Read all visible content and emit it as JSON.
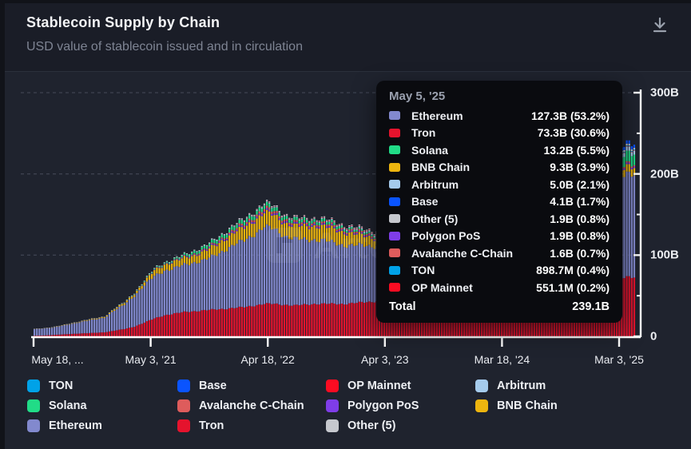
{
  "header": {
    "title": "Stablecoin Supply by Chain",
    "subtitle": "USD value of stablecoin issued and in circulation"
  },
  "watermark": "Artemis",
  "colors": {
    "Tron": "#e5132d",
    "Ethereum": "#8289ce",
    "BNB Chain": "#edb50f",
    "Polygon PoS": "#7f3de8",
    "Avalanche C-Chain": "#de5c5c",
    "Solana": "#21dc87",
    "Arbitrum": "#a5cbec",
    "OP Mainnet": "#fb0c22",
    "TON": "#00a2e8",
    "Other (5)": "#c6c8ce",
    "Base": "#0a54ff"
  },
  "chart_data": {
    "type": "bar",
    "subtype": "stacked-time-series",
    "title": "Stablecoin Supply by Chain",
    "unit": "billions USD",
    "ylim": [
      0,
      300
    ],
    "y_ticks": [
      "0",
      "100B",
      "200B",
      "300B"
    ],
    "y_tick_values": [
      0,
      100,
      200,
      300
    ],
    "y_minor_tick_values": [
      50,
      150,
      250
    ],
    "x_ticks": [
      "May 18, ...",
      "May 3, '21",
      "Apr 18, '22",
      "Apr 3, '23",
      "Mar 18, '24",
      "Mar 3, '25"
    ],
    "grid": "dashed-horizontal",
    "legend_position": "bottom",
    "x_monthly": [
      "2020-05",
      "2020-06",
      "2020-07",
      "2020-08",
      "2020-09",
      "2020-10",
      "2020-11",
      "2020-12",
      "2021-01",
      "2021-02",
      "2021-03",
      "2021-04",
      "2021-05",
      "2021-06",
      "2021-07",
      "2021-08",
      "2021-09",
      "2021-10",
      "2021-11",
      "2021-12",
      "2022-01",
      "2022-02",
      "2022-03",
      "2022-04",
      "2022-05",
      "2022-06",
      "2022-07",
      "2022-08",
      "2022-09",
      "2022-10",
      "2022-11",
      "2022-12",
      "2023-01",
      "2023-02",
      "2023-03",
      "2023-04",
      "2023-05",
      "2023-06",
      "2023-07",
      "2023-08",
      "2023-09",
      "2023-10",
      "2023-11",
      "2023-12",
      "2024-01",
      "2024-02",
      "2024-03",
      "2024-04",
      "2024-05",
      "2024-06",
      "2024-07",
      "2024-08",
      "2024-09",
      "2024-10",
      "2024-11",
      "2024-12",
      "2025-01",
      "2025-02",
      "2025-03",
      "2025-04",
      "2025-05"
    ],
    "stack_order_bottom_to_top": [
      "Tron",
      "Ethereum",
      "BNB Chain",
      "Polygon PoS",
      "Avalanche C-Chain",
      "Solana",
      "Arbitrum",
      "OP Mainnet",
      "TON",
      "Other (5)",
      "Base"
    ],
    "series": [
      {
        "name": "Tron",
        "values": [
          0.8,
          1.2,
          1.8,
          2.5,
          3.2,
          3.8,
          4.3,
          5,
          7,
          9,
          12,
          17,
          22,
          26,
          28,
          30,
          31,
          32,
          33,
          34,
          35,
          36,
          38,
          40,
          40,
          39,
          38,
          39,
          40,
          40,
          40,
          40,
          41,
          42,
          43,
          44,
          45,
          45,
          45,
          45,
          45,
          45,
          46,
          47,
          49,
          51,
          53,
          55,
          57,
          58,
          59,
          60,
          61,
          62,
          63,
          65,
          67,
          69,
          70,
          72,
          73.3
        ]
      },
      {
        "name": "Ethereum",
        "values": [
          8,
          8.6,
          9.4,
          11,
          13,
          15,
          16.5,
          18,
          25,
          30,
          38,
          46,
          52,
          55,
          56,
          58,
          60,
          62,
          66,
          72,
          78,
          82,
          88,
          95,
          92,
          85,
          82,
          80,
          79,
          78,
          75,
          72,
          71,
          70,
          68,
          66,
          65,
          64,
          63,
          62,
          61,
          60,
          62,
          64,
          68,
          71,
          74,
          77,
          79,
          81,
          83,
          85,
          88,
          92,
          98,
          105,
          112,
          118,
          122,
          125,
          127.3
        ]
      },
      {
        "name": "BNB Chain",
        "values": [
          0.2,
          0.2,
          0.3,
          0.4,
          0.5,
          0.6,
          0.8,
          1,
          1.5,
          2,
          2.5,
          4,
          7,
          7.5,
          8,
          8.5,
          9,
          10.5,
          12,
          13.5,
          15,
          16,
          17,
          17.5,
          17,
          16,
          16,
          16.5,
          17,
          17,
          17,
          16,
          14,
          12,
          10,
          9,
          8,
          7,
          6.5,
          6,
          5.5,
          5.2,
          5,
          5,
          5,
          5.2,
          5.5,
          5.5,
          5.5,
          5.5,
          5.5,
          5.5,
          5.5,
          5.7,
          6,
          6.5,
          7,
          7.5,
          8,
          8.8,
          9.3
        ]
      },
      {
        "name": "Polygon PoS",
        "values": [
          0,
          0,
          0,
          0,
          0,
          0,
          0,
          0,
          0.1,
          0.1,
          0.2,
          0.4,
          0.6,
          0.7,
          0.8,
          0.9,
          1,
          1.2,
          1.4,
          1.6,
          1.8,
          1.9,
          2,
          2.1,
          2,
          1.9,
          1.9,
          1.9,
          1.8,
          1.8,
          1.7,
          1.6,
          1.6,
          1.5,
          1.4,
          1.3,
          1.3,
          1.2,
          1.2,
          1.2,
          1.2,
          1.2,
          1.2,
          1.3,
          1.3,
          1.4,
          1.4,
          1.4,
          1.4,
          1.4,
          1.4,
          1.4,
          1.5,
          1.5,
          1.6,
          1.7,
          1.8,
          1.9,
          1.9,
          1.9,
          1.9
        ]
      },
      {
        "name": "Avalanche C-Chain",
        "values": [
          0,
          0,
          0,
          0,
          0,
          0,
          0,
          0,
          0,
          0.1,
          0.1,
          0.2,
          0.2,
          0.2,
          0.3,
          0.4,
          0.8,
          1,
          1.3,
          1.6,
          2,
          2.3,
          2.6,
          3,
          2.8,
          2.5,
          2.4,
          2.3,
          2.2,
          2.1,
          2,
          1.9,
          1.9,
          1.8,
          1.7,
          1.6,
          1.6,
          1.5,
          1.5,
          1.4,
          1.4,
          1.3,
          1.3,
          1.3,
          1.3,
          1.3,
          1.4,
          1.4,
          1.4,
          1.4,
          1.5,
          1.5,
          1.5,
          1.5,
          1.6,
          1.6,
          1.6,
          1.6,
          1.6,
          1.6,
          1.6
        ]
      },
      {
        "name": "Solana",
        "values": [
          0,
          0,
          0,
          0,
          0,
          0,
          0,
          0,
          0.2,
          0.3,
          0.5,
          0.8,
          1,
          1.2,
          1.5,
          2,
          3,
          3.3,
          3.7,
          4,
          4.2,
          4.4,
          4.5,
          4.6,
          4.4,
          3.8,
          3.6,
          3.5,
          3.4,
          3.3,
          3.1,
          2.5,
          2,
          1.9,
          1.8,
          1.8,
          1.7,
          1.7,
          1.6,
          1.6,
          1.5,
          1.5,
          1.6,
          1.8,
          2,
          2.5,
          3,
          3.2,
          3.5,
          3.7,
          4,
          4.2,
          4.5,
          4.8,
          5.5,
          7,
          10,
          11.5,
          12,
          12.5,
          13.2
        ]
      },
      {
        "name": "Arbitrum",
        "values": [
          0,
          0,
          0,
          0,
          0,
          0,
          0,
          0,
          0,
          0,
          0,
          0,
          0,
          0,
          0.1,
          0.1,
          0.3,
          0.4,
          0.5,
          0.6,
          0.7,
          0.8,
          0.9,
          1,
          1,
          1,
          1,
          1,
          1,
          1.1,
          1.1,
          1.2,
          1.5,
          1.7,
          1.9,
          2,
          2.1,
          2.2,
          2.3,
          2.4,
          2.5,
          2.6,
          2.7,
          2.8,
          3,
          3.2,
          3.3,
          3.4,
          3.5,
          3.5,
          3.6,
          3.7,
          3.8,
          4,
          4.5,
          5,
          5.5,
          5.3,
          5.1,
          5,
          5
        ]
      },
      {
        "name": "OP Mainnet",
        "values": [
          0,
          0,
          0,
          0,
          0,
          0,
          0,
          0,
          0,
          0,
          0,
          0,
          0,
          0,
          0,
          0,
          0,
          0,
          0,
          0,
          0.2,
          0.25,
          0.3,
          0.35,
          0.4,
          0.4,
          0.45,
          0.5,
          0.5,
          0.55,
          0.6,
          0.6,
          0.6,
          0.65,
          0.7,
          0.7,
          0.7,
          0.7,
          0.7,
          0.75,
          0.8,
          0.8,
          0.8,
          0.8,
          0.85,
          0.9,
          0.9,
          0.9,
          0.9,
          0.85,
          0.85,
          0.8,
          0.8,
          0.8,
          0.75,
          0.7,
          0.65,
          0.6,
          0.6,
          0.55,
          0.55
        ]
      },
      {
        "name": "TON",
        "values": [
          0,
          0,
          0,
          0,
          0,
          0,
          0,
          0,
          0,
          0,
          0,
          0,
          0,
          0,
          0,
          0,
          0,
          0,
          0,
          0,
          0,
          0,
          0,
          0,
          0,
          0,
          0,
          0,
          0,
          0,
          0,
          0,
          0,
          0,
          0,
          0,
          0,
          0,
          0,
          0,
          0,
          0,
          0,
          0,
          0,
          0,
          0,
          0.2,
          0.4,
          0.5,
          0.6,
          0.7,
          0.75,
          0.8,
          0.85,
          0.9,
          1,
          1,
          0.95,
          0.9,
          0.9
        ]
      },
      {
        "name": "Other (5)",
        "values": [
          0.3,
          0.3,
          0.35,
          0.4,
          0.4,
          0.45,
          0.5,
          0.5,
          0.6,
          0.6,
          0.7,
          0.7,
          0.8,
          0.8,
          0.8,
          0.9,
          0.9,
          0.9,
          1,
          1,
          1,
          1,
          1.1,
          1.1,
          1.1,
          1,
          1,
          1,
          1,
          1,
          1,
          1,
          1.1,
          1.1,
          1.2,
          1.2,
          1.2,
          1.3,
          1.3,
          1.3,
          1.3,
          1.4,
          1.4,
          1.4,
          1.4,
          1.5,
          1.5,
          1.5,
          1.5,
          1.5,
          1.6,
          1.6,
          1.6,
          1.6,
          1.7,
          1.7,
          1.8,
          1.8,
          1.9,
          1.9,
          1.9
        ]
      },
      {
        "name": "Base",
        "values": [
          0,
          0,
          0,
          0,
          0,
          0,
          0,
          0,
          0,
          0,
          0,
          0,
          0,
          0,
          0,
          0,
          0,
          0,
          0,
          0,
          0,
          0,
          0,
          0,
          0,
          0,
          0,
          0,
          0,
          0,
          0,
          0,
          0,
          0,
          0,
          0,
          0,
          0,
          0,
          0.1,
          0.2,
          0.3,
          0.4,
          0.5,
          0.6,
          0.8,
          1.2,
          1.5,
          1.8,
          2,
          2.3,
          2.5,
          2.8,
          3,
          3.2,
          3.4,
          3.6,
          3.8,
          4,
          4,
          4.1
        ]
      }
    ]
  },
  "tooltip": {
    "date": "May 5, '25",
    "rows": [
      {
        "label": "Ethereum",
        "value": "127.3B (53.2%)"
      },
      {
        "label": "Tron",
        "value": "73.3B (30.6%)"
      },
      {
        "label": "Solana",
        "value": "13.2B (5.5%)"
      },
      {
        "label": "BNB Chain",
        "value": "9.3B (3.9%)"
      },
      {
        "label": "Arbitrum",
        "value": "5.0B (2.1%)"
      },
      {
        "label": "Base",
        "value": "4.1B (1.7%)"
      },
      {
        "label": "Other (5)",
        "value": "1.9B (0.8%)"
      },
      {
        "label": "Polygon PoS",
        "value": "1.9B (0.8%)"
      },
      {
        "label": "Avalanche C-Chain",
        "value": "1.6B (0.7%)"
      },
      {
        "label": "TON",
        "value": "898.7M (0.4%)"
      },
      {
        "label": "OP Mainnet",
        "value": "551.1M (0.2%)"
      }
    ],
    "total_label": "Total",
    "total_value": "239.1B"
  },
  "legend": {
    "columns": [
      [
        "TON",
        "Solana",
        "Ethereum"
      ],
      [
        "Base",
        "Avalanche C-Chain",
        "Tron"
      ],
      [
        "OP Mainnet",
        "Polygon PoS",
        "Other (5)"
      ],
      [
        "Arbitrum",
        "BNB Chain"
      ]
    ]
  }
}
